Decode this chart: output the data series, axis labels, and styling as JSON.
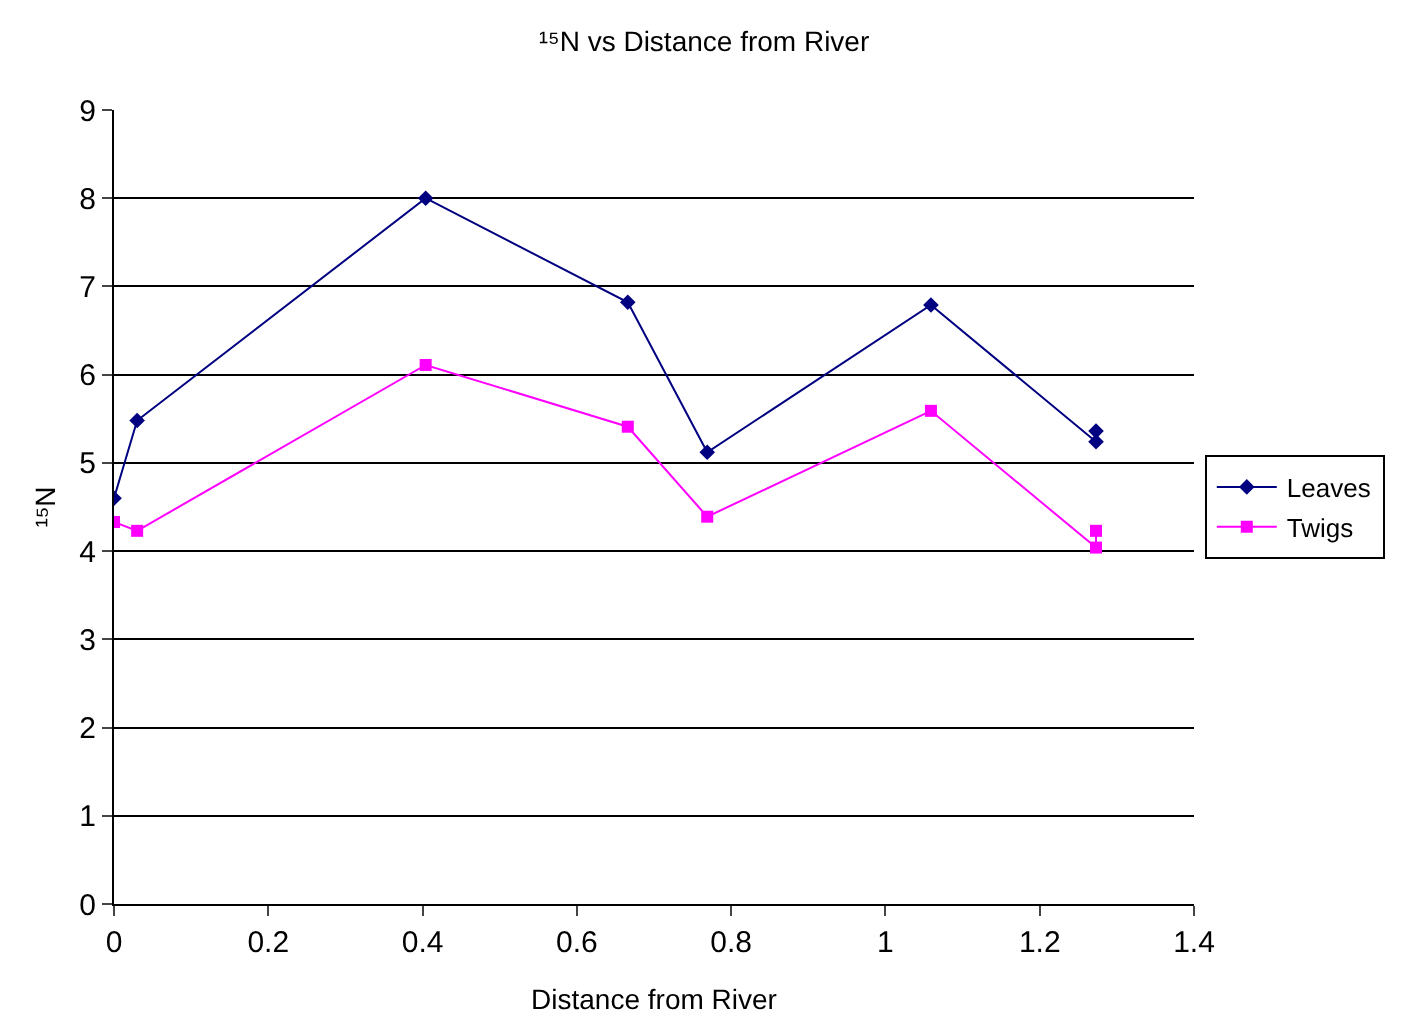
{
  "chart_data": {
    "type": "line",
    "title": "¹⁵N vs Distance from River",
    "xlabel": "Distance from River",
    "ylabel": "¹⁵N",
    "xlim": [
      0,
      1.4
    ],
    "xticks": [
      0,
      0.2,
      0.4,
      0.6,
      0.8,
      1,
      1.2,
      1.4
    ],
    "ylim": [
      0,
      9
    ],
    "yticks": [
      0,
      1,
      2,
      3,
      4,
      5,
      6,
      7,
      8,
      9
    ],
    "grid": "y",
    "legend": "right",
    "line_style": "solid",
    "x": [
      0,
      0.03,
      0.404,
      0.666,
      0.769,
      1.059,
      1.273,
      1.273
    ],
    "series": [
      {
        "name": "Leaves",
        "color": "#000080",
        "marker": "diamond",
        "values": [
          4.6,
          5.48,
          8.0,
          6.82,
          5.12,
          6.79,
          5.24,
          5.36
        ]
      },
      {
        "name": "Twigs",
        "color": "#ff00ff",
        "marker": "square",
        "values": [
          4.33,
          4.23,
          6.11,
          5.41,
          4.39,
          5.59,
          4.04,
          4.23
        ]
      }
    ]
  }
}
